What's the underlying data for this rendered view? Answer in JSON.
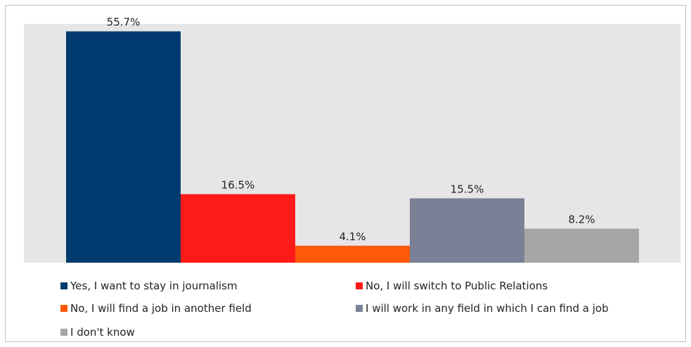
{
  "chart_data": {
    "type": "bar",
    "title": "",
    "xlabel": "",
    "ylabel": "",
    "ylim": [
      0,
      57.5
    ],
    "grid": false,
    "legend_position": "bottom",
    "categories": [
      "Yes, I want to stay in journalism",
      "No, I will switch to Public Relations",
      "No, I will find a job in another field",
      "I will work in any field in which I can find a job",
      "I don't know"
    ],
    "values": [
      55.7,
      16.5,
      4.1,
      15.5,
      8.2
    ],
    "data_labels": [
      "55.7%",
      "16.5%",
      "4.1%",
      "15.5%",
      "8.2%"
    ],
    "colors": [
      "#003a6e",
      "#ff1a1a",
      "#ff5a0a",
      "#7a8196",
      "#a6a6a6"
    ],
    "plot_background": "#e6e6e6"
  }
}
